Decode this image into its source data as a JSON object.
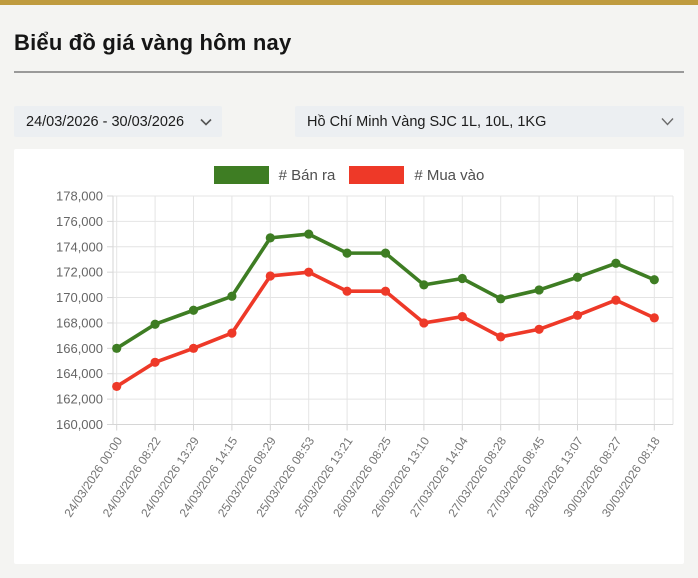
{
  "page": {
    "title": "Biểu đồ giá vàng hôm nay"
  },
  "filters": {
    "date_range": {
      "value": "24/03/2026 - 30/03/2026"
    },
    "product": {
      "value": "Hồ Chí Minh Vàng SJC 1L, 10L, 1KG"
    }
  },
  "colors": {
    "accent-bar": "#bf9b3f",
    "page-bg": "#f4f4f2",
    "card-bg": "#ffffff",
    "control-bg": "#eceff2",
    "grid-line": "#e4e4e4",
    "axis-line": "#d6d6d6",
    "axis-text": "#666666",
    "x-label-text": "#757575"
  },
  "chart_data": {
    "type": "line",
    "title": "",
    "xlabel": "",
    "ylabel": "",
    "ylim": [
      160000,
      178000
    ],
    "ytick_step": 2000,
    "grid": true,
    "legend_position": "top",
    "categories": [
      "24/03/2026 00:00",
      "24/03/2026 08:22",
      "24/03/2026 13:29",
      "24/03/2026 14:15",
      "25/03/2026 08:29",
      "25/03/2026 08:53",
      "25/03/2026 13:21",
      "26/03/2026 08:25",
      "26/03/2026 13:10",
      "27/03/2026 14:04",
      "27/03/2026 08:28",
      "27/03/2026 08:45",
      "28/03/2026 13:07",
      "30/03/2026 08:27",
      "30/03/2026 08:18"
    ],
    "series": [
      {
        "name": "# Bán ra",
        "color": "#3e7d23",
        "values": [
          166000,
          167900,
          169000,
          170100,
          174700,
          175000,
          173500,
          173500,
          171000,
          171500,
          169900,
          170600,
          171600,
          172700,
          171400
        ]
      },
      {
        "name": "# Mua vào",
        "color": "#ee3928",
        "values": [
          163000,
          164900,
          166000,
          167200,
          171700,
          172000,
          170500,
          170500,
          168000,
          168500,
          166900,
          167500,
          168600,
          169800,
          168400
        ]
      }
    ]
  }
}
